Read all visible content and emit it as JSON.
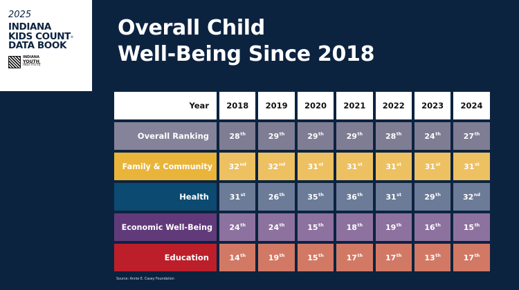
{
  "logo": {
    "year": "2025",
    "title_lines": [
      "INDIANA",
      "KIDS COUNT",
      "DATA BOOK"
    ],
    "registered_mark": "®",
    "publisher_lines": [
      "INDIANA",
      "YOUTH",
      "INSTITUTE"
    ]
  },
  "header": {
    "title_line1": "Overall Child",
    "title_line2": "Well-Being Since 2018"
  },
  "colors": {
    "background": "#0c2340",
    "overall": "#7f7d93",
    "family_community": "#e8b43a",
    "health": "#0c4a72",
    "economic_well_being": "#613a7a",
    "education": "#bd1f2a"
  },
  "table": {
    "header_label": "Year",
    "years": [
      "2018",
      "2019",
      "2020",
      "2021",
      "2022",
      "2023",
      "2024"
    ],
    "rows": [
      {
        "label": "Overall Ranking",
        "values": [
          {
            "num": "28",
            "suffix": "th"
          },
          {
            "num": "29",
            "suffix": "th"
          },
          {
            "num": "29",
            "suffix": "th"
          },
          {
            "num": "29",
            "suffix": "th"
          },
          {
            "num": "28",
            "suffix": "th"
          },
          {
            "num": "24",
            "suffix": "th"
          },
          {
            "num": "27",
            "suffix": "th"
          }
        ]
      },
      {
        "label": "Family & Community",
        "values": [
          {
            "num": "32",
            "suffix": "nd"
          },
          {
            "num": "32",
            "suffix": "nd"
          },
          {
            "num": "31",
            "suffix": "st"
          },
          {
            "num": "31",
            "suffix": "st"
          },
          {
            "num": "31",
            "suffix": "st"
          },
          {
            "num": "31",
            "suffix": "st"
          },
          {
            "num": "31",
            "suffix": "st"
          }
        ]
      },
      {
        "label": "Health",
        "values": [
          {
            "num": "31",
            "suffix": "st"
          },
          {
            "num": "26",
            "suffix": "th"
          },
          {
            "num": "35",
            "suffix": "th"
          },
          {
            "num": "36",
            "suffix": "th"
          },
          {
            "num": "31",
            "suffix": "st"
          },
          {
            "num": "29",
            "suffix": "th"
          },
          {
            "num": "32",
            "suffix": "nd"
          }
        ]
      },
      {
        "label": "Economic Well-Being",
        "values": [
          {
            "num": "24",
            "suffix": "th"
          },
          {
            "num": "24",
            "suffix": "th"
          },
          {
            "num": "15",
            "suffix": "th"
          },
          {
            "num": "18",
            "suffix": "th"
          },
          {
            "num": "19",
            "suffix": "th"
          },
          {
            "num": "16",
            "suffix": "th"
          },
          {
            "num": "15",
            "suffix": "th"
          }
        ]
      },
      {
        "label": "Education",
        "values": [
          {
            "num": "14",
            "suffix": "th"
          },
          {
            "num": "19",
            "suffix": "th"
          },
          {
            "num": "15",
            "suffix": "th"
          },
          {
            "num": "17",
            "suffix": "th"
          },
          {
            "num": "17",
            "suffix": "th"
          },
          {
            "num": "13",
            "suffix": "th"
          },
          {
            "num": "17",
            "suffix": "th"
          }
        ]
      }
    ]
  },
  "chart_data": {
    "type": "table",
    "title": "Overall Child Well-Being Since 2018",
    "columns": [
      "Year",
      "2018",
      "2019",
      "2020",
      "2021",
      "2022",
      "2023",
      "2024"
    ],
    "rows": [
      {
        "category": "Overall Ranking",
        "values": [
          28,
          29,
          29,
          29,
          28,
          24,
          27
        ]
      },
      {
        "category": "Family & Community",
        "values": [
          32,
          32,
          31,
          31,
          31,
          31,
          31
        ]
      },
      {
        "category": "Health",
        "values": [
          31,
          26,
          35,
          36,
          31,
          29,
          32
        ]
      },
      {
        "category": "Economic Well-Being",
        "values": [
          24,
          24,
          15,
          18,
          19,
          16,
          15
        ]
      },
      {
        "category": "Education",
        "values": [
          14,
          19,
          15,
          17,
          17,
          13,
          17
        ]
      }
    ],
    "source": "Source: Annie E. Casey Foundation"
  },
  "footer": {
    "source": "Source: Annie E. Casey Foundation"
  }
}
